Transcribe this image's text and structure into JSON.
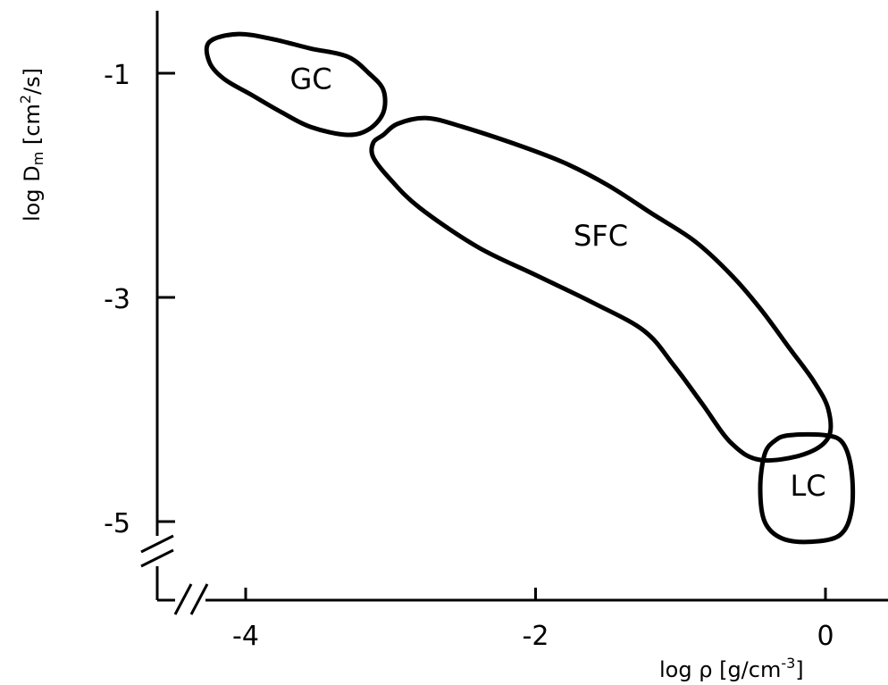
{
  "chart_data": {
    "type": "scatter",
    "xlabel": {
      "prefix": "log ρ [g/cm",
      "sup": "-3",
      "suffix": "]"
    },
    "ylabel": {
      "prefix": "log D",
      "sub": "m",
      "mid": " [cm",
      "sup": "2",
      "suffix": "/s]"
    },
    "xlim": [
      -4.6,
      0.4
    ],
    "ylim": [
      -5.6,
      -0.55
    ],
    "x_ticks": [
      -4,
      -2,
      0
    ],
    "x_tick_labels": [
      "-4",
      "-2",
      "0"
    ],
    "y_ticks": [
      -1,
      -3,
      -5
    ],
    "y_tick_labels": [
      "-1",
      "-3",
      "-5"
    ],
    "axis_breaks": [
      "x",
      "y"
    ],
    "grid": false,
    "regions": [
      {
        "label": "GC",
        "label_pos": [
          -3.55,
          -1.05
        ],
        "outline": [
          [
            -4.05,
            -0.65
          ],
          [
            -3.8,
            -0.7
          ],
          [
            -3.55,
            -0.78
          ],
          [
            -3.3,
            -0.85
          ],
          [
            -3.15,
            -1.0
          ],
          [
            -3.05,
            -1.15
          ],
          [
            -3.05,
            -1.35
          ],
          [
            -3.15,
            -1.5
          ],
          [
            -3.3,
            -1.55
          ],
          [
            -3.55,
            -1.48
          ],
          [
            -3.75,
            -1.35
          ],
          [
            -3.95,
            -1.2
          ],
          [
            -4.15,
            -1.05
          ],
          [
            -4.25,
            -0.9
          ],
          [
            -4.25,
            -0.72
          ]
        ]
      },
      {
        "label": "SFC",
        "label_pos": [
          -1.55,
          -2.45
        ],
        "outline": [
          [
            -3.05,
            -1.55
          ],
          [
            -2.95,
            -1.45
          ],
          [
            -2.75,
            -1.4
          ],
          [
            -2.5,
            -1.48
          ],
          [
            -2.1,
            -1.65
          ],
          [
            -1.8,
            -1.8
          ],
          [
            -1.5,
            -2.0
          ],
          [
            -1.2,
            -2.25
          ],
          [
            -0.9,
            -2.5
          ],
          [
            -0.65,
            -2.8
          ],
          [
            -0.45,
            -3.1
          ],
          [
            -0.25,
            -3.45
          ],
          [
            -0.08,
            -3.75
          ],
          [
            0.02,
            -4.0
          ],
          [
            0.02,
            -4.25
          ],
          [
            -0.15,
            -4.4
          ],
          [
            -0.45,
            -4.45
          ],
          [
            -0.65,
            -4.3
          ],
          [
            -0.85,
            -3.95
          ],
          [
            -1.05,
            -3.6
          ],
          [
            -1.25,
            -3.3
          ],
          [
            -1.6,
            -3.05
          ],
          [
            -2.0,
            -2.8
          ],
          [
            -2.4,
            -2.55
          ],
          [
            -2.8,
            -2.2
          ],
          [
            -3.0,
            -1.95
          ],
          [
            -3.12,
            -1.75
          ],
          [
            -3.12,
            -1.62
          ]
        ]
      },
      {
        "label": "LC",
        "label_pos": [
          -0.12,
          -4.68
        ],
        "outline": [
          [
            -0.25,
            -4.23
          ],
          [
            0.0,
            -4.23
          ],
          [
            0.12,
            -4.3
          ],
          [
            0.18,
            -4.55
          ],
          [
            0.18,
            -4.9
          ],
          [
            0.1,
            -5.12
          ],
          [
            -0.1,
            -5.18
          ],
          [
            -0.3,
            -5.15
          ],
          [
            -0.42,
            -5.0
          ],
          [
            -0.45,
            -4.7
          ],
          [
            -0.42,
            -4.4
          ],
          [
            -0.35,
            -4.28
          ]
        ]
      }
    ]
  }
}
